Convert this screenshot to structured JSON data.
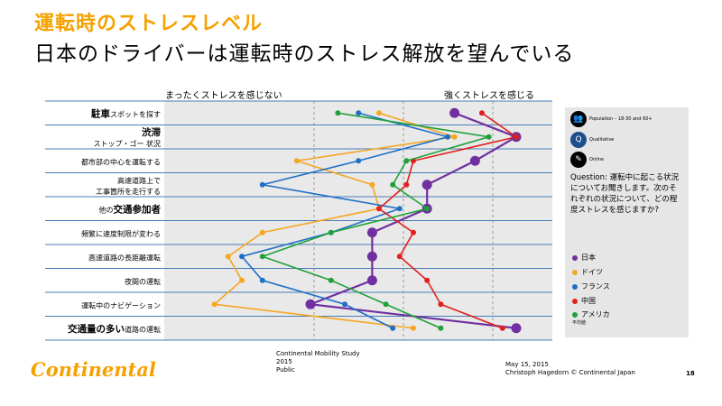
{
  "header": {
    "title": "運転時のストレスレベル",
    "subtitle": "日本のドライバーは運転時のストレス解放を望んでいる"
  },
  "scale": {
    "left": "まったくストレスを感じない",
    "right": "強くストレスを感じる"
  },
  "chart_data": {
    "type": "line",
    "orientation": "horizontal-profile",
    "grid": true,
    "categories": [
      "駐車スポットを探す",
      "渋滞 ストップ・ゴー 状況",
      "都市部の中心を運転する",
      "高速道路上で 工事箇所を走行する",
      "他の交通参加者",
      "頻繁に速度制限が変わる",
      "高速道路の長距離運転",
      "夜間の運転",
      "運転中のナビゲーション",
      "交通量の多い道路の運転"
    ],
    "category_labels": [
      [
        {
          "t": "駐車",
          "b": true
        },
        {
          "t": "スポットを探す",
          "b": false
        }
      ],
      [
        {
          "t": "渋滞",
          "b": true
        },
        {
          "t": "\nストップ・ゴー 状況",
          "b": false
        }
      ],
      [
        {
          "t": "都市部の中心",
          "b": false
        },
        {
          "t": "を運転する",
          "b": false
        }
      ],
      [
        {
          "t": "高速道路上で",
          "b": false
        },
        {
          "t": "\n工事箇所を走行する",
          "b": false
        }
      ],
      [
        {
          "t": "他の",
          "b": false
        },
        {
          "t": "交通参加者",
          "b": true
        }
      ],
      [
        {
          "t": "頻繁に速度制限が変わる",
          "b": false
        }
      ],
      [
        {
          "t": "高速道路の長距離",
          "b": false
        },
        {
          "t": "運転",
          "b": false
        }
      ],
      [
        {
          "t": "夜間の運転",
          "b": false
        }
      ],
      [
        {
          "t": "運転中のナビゲーション",
          "b": false
        }
      ],
      [
        {
          "t": "交通量の多い",
          "b": true
        },
        {
          "t": "道路の運転",
          "b": false
        }
      ]
    ],
    "series": [
      {
        "name": "日本",
        "color": "#7030a0",
        "marker": "circle",
        "values": [
          3.6,
          4.5,
          3.9,
          3.2,
          3.2,
          2.4,
          2.4,
          2.4,
          1.5,
          4.5
        ]
      },
      {
        "name": "ドイツ",
        "color": "#f5a623",
        "marker": "dot",
        "values": [
          2.5,
          3.6,
          1.3,
          2.4,
          2.5,
          0.8,
          0.3,
          0.5,
          0.1,
          3.0
        ]
      },
      {
        "name": "フランス",
        "color": "#1f6fc5",
        "marker": "dot",
        "values": [
          2.2,
          3.5,
          2.2,
          0.8,
          2.8,
          1.8,
          0.5,
          0.8,
          2.0,
          2.7
        ]
      },
      {
        "name": "中国",
        "color": "#e0201b",
        "marker": "dot",
        "values": [
          4.0,
          4.5,
          3.0,
          2.9,
          2.5,
          3.0,
          2.8,
          3.2,
          3.4,
          4.3
        ]
      },
      {
        "name": "アメリカ",
        "color": "#1fa03a",
        "marker": "dot",
        "values": [
          1.9,
          4.1,
          2.9,
          2.7,
          3.2,
          1.8,
          0.8,
          1.8,
          2.6,
          3.4
        ]
      }
    ],
    "xlim": [
      0,
      5
    ]
  },
  "sidebar": {
    "icon_rows": [
      {
        "glyph": "👥",
        "text": "Population – 18-30 and 60+"
      },
      {
        "glyph": "Q",
        "text": "Qualitative"
      },
      {
        "glyph": "✎",
        "text": "Online"
      }
    ],
    "question": "Question: 運転中に起こる状況についてお聞きします。次のそれぞれの状況について、どの程度ストレスを感じますか?",
    "legend_note": "平均値"
  },
  "footer": {
    "logo": "Continental",
    "study": "Continental Mobility Study",
    "year": "2015",
    "classification": "Public",
    "date": "May 15, 2015",
    "author": "Christoph Hagedorn © Continental Japan",
    "page": "18"
  }
}
